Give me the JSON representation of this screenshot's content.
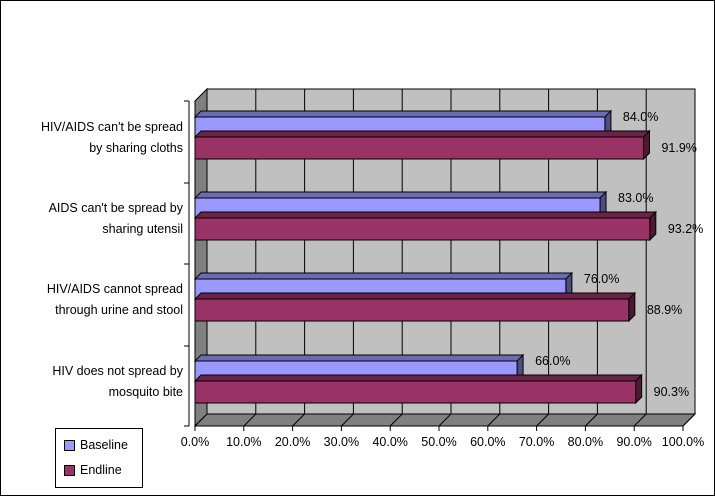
{
  "chart_data": {
    "type": "bar",
    "orientation": "horizontal",
    "categories": [
      "HIV/AIDS can't be spread\nby sharing cloths",
      "AIDS can't be spread by\nsharing utensil",
      "HIV/AIDS cannot spread\nthrough urine and stool",
      "HIV does not spread by\nmosquito bite"
    ],
    "series": [
      {
        "name": "Baseline",
        "color": "#9999ff",
        "values": [
          84.0,
          83.0,
          76.0,
          66.0
        ],
        "labels": [
          "84.0%",
          "83.0%",
          "76.0%",
          "66.0%"
        ]
      },
      {
        "name": "Endline",
        "color": "#993366",
        "values": [
          91.9,
          93.2,
          88.9,
          90.3
        ],
        "labels": [
          "91.9%",
          "93.2%",
          "88.9%",
          "90.3%"
        ]
      }
    ],
    "xlim": [
      0,
      100
    ],
    "xticks": [
      "0.0%",
      "10.0%",
      "20.0%",
      "30.0%",
      "40.0%",
      "50.0%",
      "60.0%",
      "70.0%",
      "80.0%",
      "90.0%",
      "100.0%"
    ],
    "grid": true,
    "three_d": true,
    "legend_position": "bottom-left"
  }
}
